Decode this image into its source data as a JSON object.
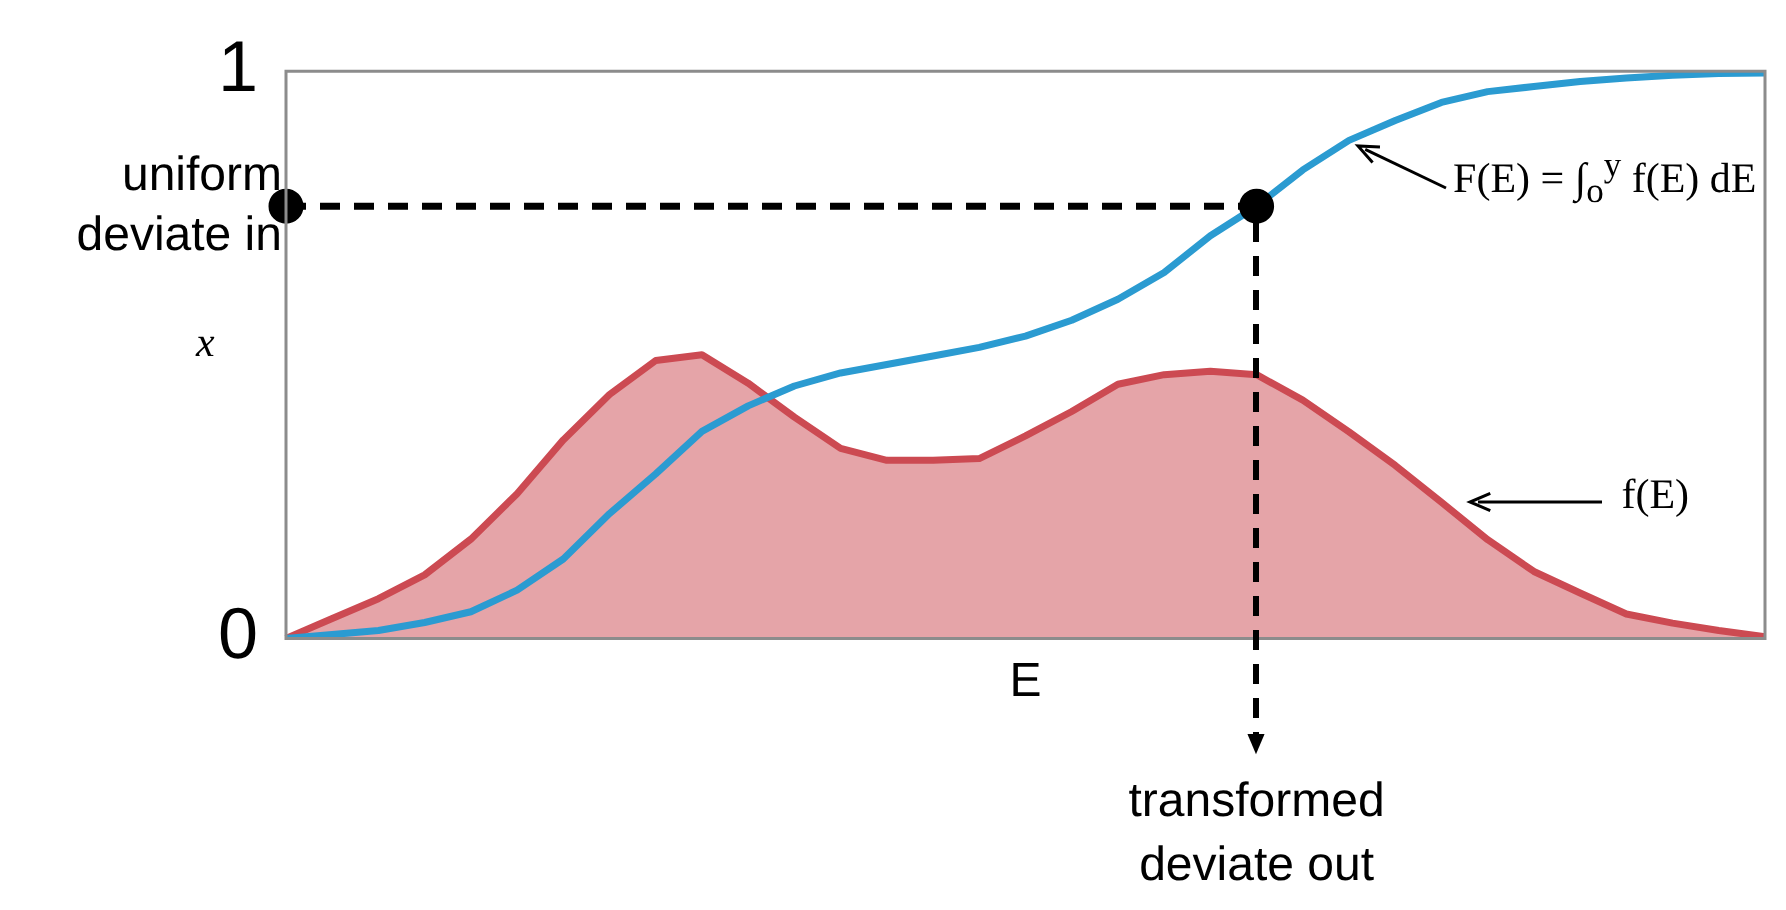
{
  "chart_data": {
    "type": "line",
    "xlabel": "E",
    "ylabel": "x",
    "categories": [
      null,
      null,
      null,
      null,
      null,
      null,
      null,
      null,
      null,
      null,
      null,
      null,
      null,
      null,
      null,
      null,
      null,
      null,
      null,
      null,
      null,
      null,
      null,
      null,
      null,
      null,
      null,
      null,
      null,
      null,
      null,
      null,
      null
    ],
    "ylim": [
      0,
      1
    ],
    "yticks": [
      0,
      1
    ],
    "tick_labels": "y",
    "grid": false,
    "legend": false,
    "marker": "none",
    "line_style": "solid",
    "series": [
      {
        "type": "area",
        "color": "#cc4a52",
        "values": [
          0,
          0.035,
          0.07,
          0.112,
          0.175,
          0.255,
          0.35,
          0.43,
          0.49,
          0.5,
          0.45,
          0.39,
          0.335,
          0.314,
          0.314,
          0.317,
          0.357,
          0.4,
          0.448,
          0.465,
          0.471,
          0.465,
          0.42,
          0.364,
          0.305,
          0.24,
          0.174,
          0.118,
          0.08,
          0.043,
          0.027,
          0.014,
          0.003
        ]
      },
      {
        "color": "#2b9bd1",
        "values": [
          0,
          0.007,
          0.014,
          0.028,
          0.047,
          0.085,
          0.14,
          0.22,
          0.29,
          0.365,
          0.41,
          0.445,
          0.468,
          0.483,
          0.498,
          0.513,
          0.533,
          0.561,
          0.598,
          0.645,
          0.71,
          0.762,
          0.826,
          0.878,
          0.913,
          0.945,
          0.964,
          0.973,
          0.982,
          0.988,
          0.993,
          0.996,
          0.997
        ]
      },
      {
        "color": "#000000",
        "line_style": "dashed",
        "values": [
          0.762,
          0.762,
          0.762,
          0.762,
          0.762,
          0.762,
          0.762,
          0.762,
          0.762,
          0.762,
          0.762,
          0.762,
          0.762,
          0.762,
          0.762,
          0.762,
          0.762,
          0.762,
          0.762,
          0.762,
          0.762,
          0.762,
          null,
          null,
          null,
          null,
          null,
          null,
          null,
          null,
          null,
          null,
          null
        ]
      },
      {
        "type": "scatter",
        "color": "#000000",
        "marker": "circle",
        "values": [
          0.762,
          null,
          null,
          null,
          null,
          null,
          null,
          null,
          null,
          null,
          null,
          null,
          null,
          null,
          null,
          null,
          null,
          null,
          null,
          null,
          null,
          0.762,
          null,
          null,
          null,
          null,
          null,
          null,
          null,
          null,
          null,
          null,
          null
        ]
      }
    ],
    "annotations": [
      "uniform deviate in",
      "transformed deviate out",
      "F(E) = ∫$_{o}$$^{y}$ f(E) dE",
      "f(E)"
    ]
  }
}
